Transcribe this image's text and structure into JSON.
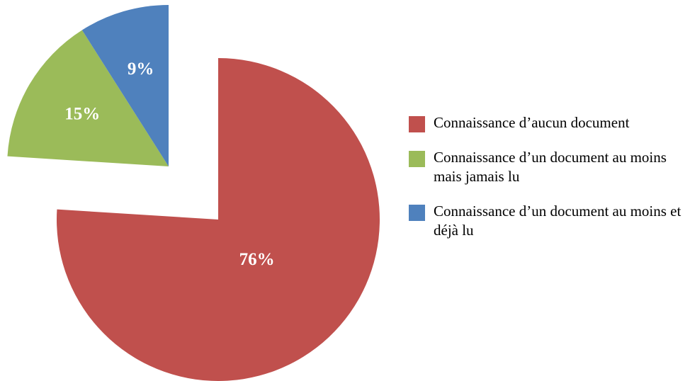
{
  "chart_data": {
    "type": "pie",
    "title": "",
    "exploded": true,
    "legend_position": "right",
    "slices": [
      {
        "label": "Connaissance d’aucun document",
        "value": 76,
        "value_label": "76%",
        "color": "#C0504D"
      },
      {
        "label": "Connaissance d’un document au moins mais jamais lu",
        "value": 15,
        "value_label": "15%",
        "color": "#9BBB59"
      },
      {
        "label": "Connaissance d’un document au moins et déjà lu",
        "value": 9,
        "value_label": "9%",
        "color": "#4F81BD"
      }
    ]
  }
}
